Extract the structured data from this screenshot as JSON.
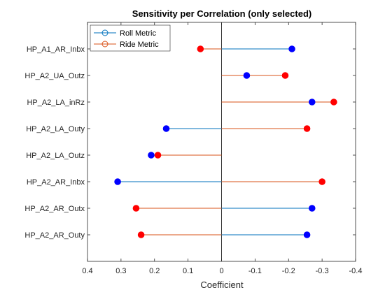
{
  "chart_data": {
    "type": "lollipop",
    "title": "Sensitivity per Correlation (only selected)",
    "xlabel": "Coefficient",
    "ylabel": "",
    "xlim": [
      0.4,
      -0.4
    ],
    "x_reversed": true,
    "xticks": [
      "0.4",
      "0.3",
      "0.2",
      "0.1",
      "0",
      "-0.1",
      "-0.2",
      "-0.3",
      "-0.4"
    ],
    "xtick_values": [
      0.4,
      0.3,
      0.2,
      0.1,
      0,
      -0.1,
      -0.2,
      -0.3,
      -0.4
    ],
    "categories": [
      "HP_A1_AR_Inbx",
      "HP_A2_UA_Outz",
      "HP_A2_LA_inRz",
      "HP_A2_LA_Outy",
      "HP_A2_LA_Outz",
      "HP_A2_AR_Inbx",
      "HP_A2_AR_Outx",
      "HP_A2_AR_Outy"
    ],
    "series": [
      {
        "name": "Roll Metric",
        "line_color": "#0072BD",
        "marker_color": "#0000FF",
        "values": [
          -0.21,
          -0.075,
          -0.27,
          0.165,
          0.21,
          0.31,
          -0.27,
          -0.255
        ]
      },
      {
        "name": "Ride Metric",
        "line_color": "#D95319",
        "marker_color": "#FF0000",
        "values": [
          0.063,
          -0.19,
          -0.335,
          -0.255,
          0.19,
          -0.3,
          0.255,
          0.24
        ]
      }
    ],
    "legend_position": "top-left",
    "grid": false
  }
}
